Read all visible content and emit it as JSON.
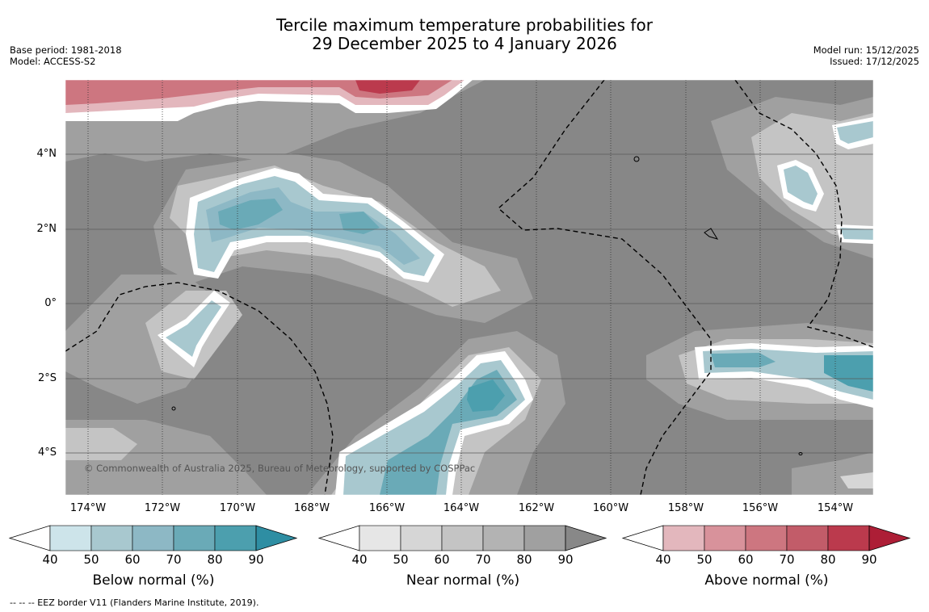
{
  "title": {
    "line1": "Tercile maximum temperature probabilities for",
    "line2": "29 December 2025 to 4 January 2026"
  },
  "meta": {
    "base_period": "Base period: 1981-2018",
    "model": "Model: ACCESS-S2",
    "model_run": "Model run: 15/12/2025",
    "issued": "Issued: 17/12/2025"
  },
  "axes": {
    "lat_labels": [
      "4°N",
      "2°N",
      "0°",
      "2°S",
      "4°S"
    ],
    "lon_labels": [
      "174°W",
      "172°W",
      "170°W",
      "168°W",
      "166°W",
      "164°W",
      "162°W",
      "160°W",
      "158°W",
      "156°W",
      "154°W"
    ]
  },
  "copyright": "© Commonwealth of Australia 2025, Bureau of Meteorology, supported by COSPPac",
  "legends": [
    {
      "label": "Below normal (%)",
      "ticks": [
        "40",
        "50",
        "60",
        "70",
        "80",
        "90"
      ],
      "colors": [
        "#cde4ea",
        "#a8c8cf",
        "#8db8c5",
        "#6aaab7",
        "#4c9fae",
        "#2e8ea3"
      ]
    },
    {
      "label": "Near normal (%)",
      "ticks": [
        "40",
        "50",
        "60",
        "70",
        "80",
        "90"
      ],
      "colors": [
        "#e6e6e6",
        "#d6d6d6",
        "#c4c4c4",
        "#b3b3b3",
        "#a0a0a0",
        "#888888"
      ]
    },
    {
      "label": "Above normal (%)",
      "ticks": [
        "40",
        "50",
        "60",
        "70",
        "80",
        "90"
      ],
      "colors": [
        "#e3b7bd",
        "#d8929b",
        "#cd7680",
        "#c25c69",
        "#bb3a4d",
        "#ad1e36"
      ]
    }
  ],
  "footnote": "--  --  -- EEZ border V11 (Flanders Marine Institute, 2019).",
  "colors": {
    "near_dark": "#878787",
    "near_mid": "#a0a0a0",
    "near_light": "#c3c3c3",
    "near_lighter": "#d6d6d6",
    "below_light": "#a8c8cf",
    "below_mid": "#8db8c5",
    "below_dark": "#4c9fae",
    "above_light": "#e3b7bd",
    "above_mid": "#cd7680",
    "above_dark": "#bb3a4d"
  }
}
